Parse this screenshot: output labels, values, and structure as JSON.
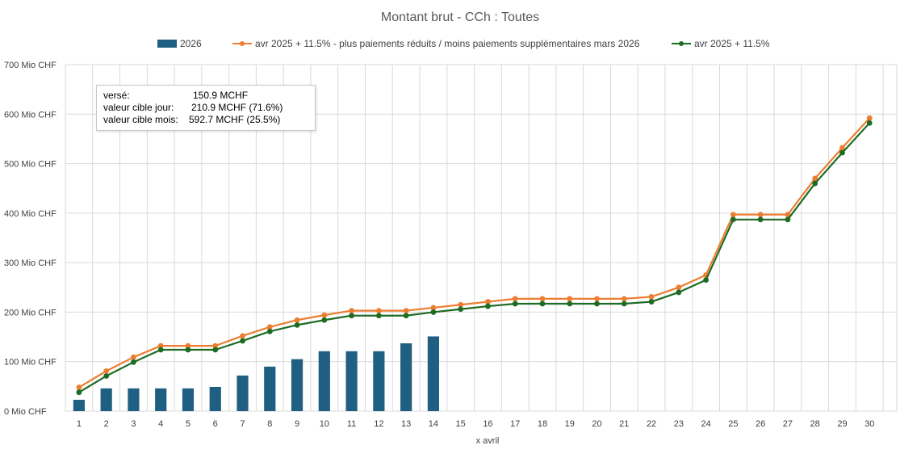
{
  "chart_data": {
    "type": "bar+line",
    "title": "Montant brut - CCh : Toutes",
    "xlabel": "x avril",
    "ylabel": "",
    "ylim": [
      0,
      700
    ],
    "y_ticks": [
      0,
      100,
      200,
      300,
      400,
      500,
      600,
      700
    ],
    "y_tick_labels": [
      "0  Mio CHF",
      "100  Mio CHF",
      "200  Mio CHF",
      "300  Mio CHF",
      "400  Mio CHF",
      "500  Mio CHF",
      "600  Mio CHF",
      "700  Mio CHF"
    ],
    "categories": [
      "1",
      "2",
      "3",
      "4",
      "5",
      "6",
      "7",
      "8",
      "9",
      "10",
      "11",
      "12",
      "13",
      "14",
      "15",
      "16",
      "17",
      "18",
      "19",
      "20",
      "21",
      "22",
      "23",
      "24",
      "25",
      "26",
      "27",
      "28",
      "29",
      "30"
    ],
    "series": [
      {
        "name": "2026",
        "kind": "bar",
        "color": "#1f5f82",
        "values": [
          23,
          46,
          46,
          46,
          46,
          49,
          72,
          90,
          105,
          121,
          121,
          121,
          137,
          151,
          null,
          null,
          null,
          null,
          null,
          null,
          null,
          null,
          null,
          null,
          null,
          null,
          null,
          null,
          null,
          null
        ]
      },
      {
        "name": "avr 2025 + 11.5% -  plus paiements réduits / moins paiements supplémentaires mars 2026",
        "kind": "line",
        "color": "#ed7d31",
        "values": [
          48,
          81,
          109,
          132,
          132,
          132,
          152,
          170,
          184,
          194,
          203,
          203,
          203,
          209,
          215,
          221,
          227,
          227,
          227,
          227,
          227,
          231,
          250,
          275,
          397,
          397,
          397,
          470,
          532,
          592
        ]
      },
      {
        "name": "avr 2025 + 11.5%",
        "kind": "line",
        "color": "#1e6b24",
        "values": [
          38,
          71,
          99,
          124,
          124,
          124,
          142,
          161,
          174,
          184,
          193,
          193,
          193,
          200,
          206,
          212,
          217,
          217,
          217,
          217,
          217,
          221,
          240,
          265,
          387,
          387,
          387,
          460,
          522,
          582
        ]
      }
    ],
    "info_box": {
      "line1_label": "versé:",
      "line1_value": "150.9 MCHF",
      "line2_label": "valeur cible jour:",
      "line2_value": "210.9 MCHF (71.6%)",
      "line3_label": "valeur cible mois:",
      "line3_value": "592.7 MCHF (25.5%)"
    }
  }
}
